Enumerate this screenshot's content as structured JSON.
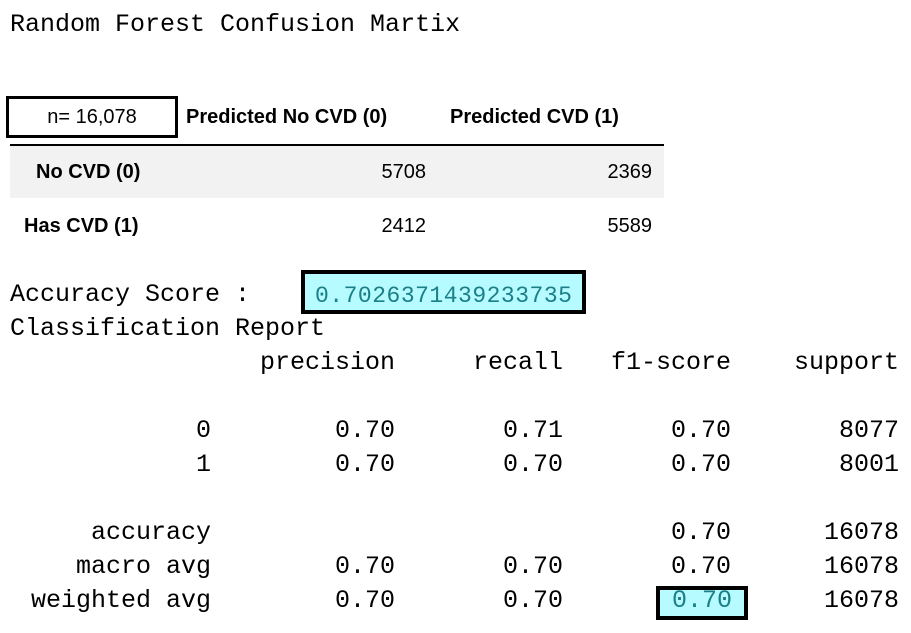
{
  "title": "Random Forest Confusion Martix",
  "confusion_matrix": {
    "n_label": "n= 16,078",
    "col_headers": [
      "Predicted No CVD (0)",
      "Predicted CVD (1)"
    ],
    "rows": [
      {
        "label": "No CVD (0)",
        "values": [
          "5708",
          "2369"
        ]
      },
      {
        "label": "Has CVD (1)",
        "values": [
          "2412",
          "5589"
        ]
      }
    ]
  },
  "accuracy": {
    "label": "Accuracy Score :",
    "value": "0.7026371439233735",
    "highlight_color": "#b6fbff",
    "highlight_text_color": "#1a7f86"
  },
  "report": {
    "title": "Classification Report",
    "headers": [
      "precision",
      "recall",
      "f1-score",
      "support"
    ],
    "rows": [
      {
        "label": "0",
        "precision": "0.70",
        "recall": "0.71",
        "f1": "0.70",
        "support": "8077"
      },
      {
        "label": "1",
        "precision": "0.70",
        "recall": "0.70",
        "f1": "0.70",
        "support": "8001"
      },
      {
        "label": "accuracy",
        "precision": "",
        "recall": "",
        "f1": "0.70",
        "support": "16078"
      },
      {
        "label": "macro avg",
        "precision": "0.70",
        "recall": "0.70",
        "f1": "0.70",
        "support": "16078"
      },
      {
        "label": "weighted avg",
        "precision": "0.70",
        "recall": "0.70",
        "f1": "0.70",
        "support": "16078"
      }
    ]
  }
}
